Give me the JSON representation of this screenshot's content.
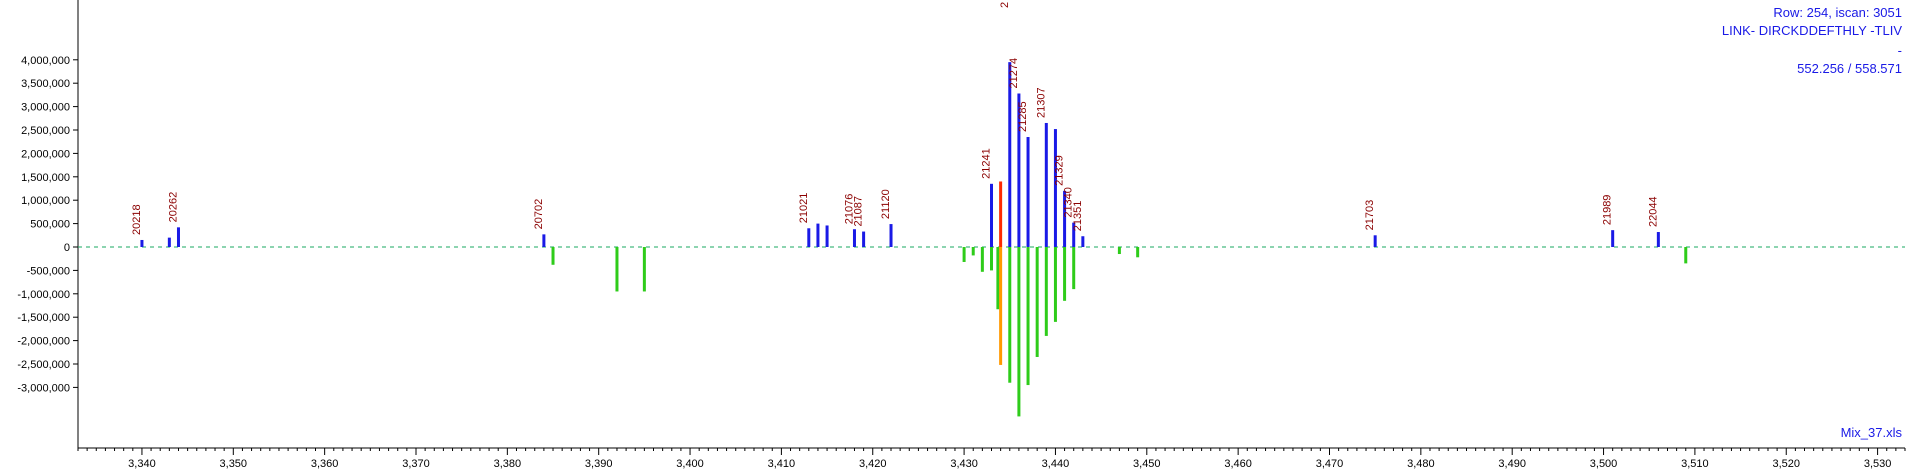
{
  "info": {
    "row_line": "Row: 254, iscan: 3051",
    "peptide_line": "LINK- DIRCKDDEFTHLY -TLIV",
    "dash_line": "-",
    "mz_line": "552.256 / 558.571",
    "file_name": "Mix_37.xls"
  },
  "colors": {
    "heavy": "#1a1ae6",
    "heavy_highlight": "#ff2a00",
    "light": "#2ecc1a",
    "light_highlight": "#ff9900",
    "baseline": "#1aa860",
    "label": "#8b0000",
    "axis": "#000000"
  },
  "chart_data": {
    "type": "bar",
    "xlim": [
      3333,
      3533
    ],
    "ylim": [
      -3700000,
      4150000
    ],
    "x_ticks": [
      3340,
      3350,
      3360,
      3370,
      3380,
      3390,
      3400,
      3410,
      3420,
      3430,
      3440,
      3450,
      3460,
      3470,
      3480,
      3490,
      3500,
      3510,
      3520,
      3530
    ],
    "x_tick_labels": [
      "3,340",
      "3,350",
      "3,360",
      "3,370",
      "3,380",
      "3,390",
      "3,400",
      "3,410",
      "3,420",
      "3,430",
      "3,440",
      "3,450",
      "3,460",
      "3,470",
      "3,480",
      "3,490",
      "3,500",
      "3,510",
      "3,520",
      "3,530"
    ],
    "y_ticks": [
      4000000,
      3500000,
      3000000,
      2500000,
      2000000,
      1500000,
      1000000,
      500000,
      0,
      -500000,
      -1000000,
      -1500000,
      -2000000,
      -2500000,
      -3000000
    ],
    "y_tick_labels": [
      "4,000,000",
      "3,500,000",
      "3,000,000",
      "2,500,000",
      "2,000,000",
      "1,500,000",
      "1,000,000",
      "500,000",
      "0",
      "-500,000",
      "-1,000,000",
      "-1,500,000",
      "-2,000,000",
      "-2,500,000",
      "-3,000,000"
    ],
    "series": [
      {
        "name": "",
        "values": [
          {
            "x": 3340,
            "y": 150000,
            "label": "20218"
          },
          {
            "x": 3343,
            "y": 200000
          },
          {
            "x": 3344,
            "y": 420000,
            "label": "20262"
          },
          {
            "x": 3384,
            "y": 270000,
            "label": "20702"
          },
          {
            "x": 3413,
            "y": 400000,
            "label": "21021"
          },
          {
            "x": 3414,
            "y": 500000
          },
          {
            "x": 3415,
            "y": 460000
          },
          {
            "x": 3418,
            "y": 380000,
            "label": "21076"
          },
          {
            "x": 3419,
            "y": 330000,
            "label": "21087"
          },
          {
            "x": 3422,
            "y": 490000,
            "label": "21120"
          },
          {
            "x": 3433,
            "y": 1350000,
            "label": "21241"
          },
          {
            "x": 3434,
            "y": 1400000,
            "highlight": true
          },
          {
            "x": 3435,
            "y": 3950000
          },
          {
            "x": 3436,
            "y": 3280000,
            "label": "21274"
          },
          {
            "x": 3437,
            "y": 2350000,
            "label": "21285"
          },
          {
            "x": 3439,
            "y": 2650000,
            "label": "21307"
          },
          {
            "x": 3440,
            "y": 2520000
          },
          {
            "x": 3441,
            "y": 1200000,
            "label": "21329"
          },
          {
            "x": 3442,
            "y": 520000,
            "label": "21340"
          },
          {
            "x": 3443,
            "y": 230000,
            "label": "21351"
          },
          {
            "x": 3475,
            "y": 250000,
            "label": "21703"
          },
          {
            "x": 3501,
            "y": 360000,
            "label": "21989"
          },
          {
            "x": 3506,
            "y": 320000,
            "label": "22044"
          }
        ]
      },
      {
        "name": "",
        "values": [
          {
            "x": 3385,
            "y": -380000
          },
          {
            "x": 3392,
            "y": -950000
          },
          {
            "x": 3395,
            "y": -950000
          },
          {
            "x": 3430,
            "y": -320000
          },
          {
            "x": 3431,
            "y": -180000
          },
          {
            "x": 3432,
            "y": -530000
          },
          {
            "x": 3433,
            "y": -500000
          },
          {
            "x": 3433.7,
            "y": -1330000
          },
          {
            "x": 3434,
            "y": -2520000,
            "highlight": true
          },
          {
            "x": 3435,
            "y": -2900000
          },
          {
            "x": 3436,
            "y": -3620000
          },
          {
            "x": 3437,
            "y": -2950000
          },
          {
            "x": 3438,
            "y": -2350000
          },
          {
            "x": 3439,
            "y": -1900000
          },
          {
            "x": 3440,
            "y": -1600000
          },
          {
            "x": 3441,
            "y": -1150000
          },
          {
            "x": 3442,
            "y": -900000
          },
          {
            "x": 3447,
            "y": -150000
          },
          {
            "x": 3449,
            "y": -220000
          },
          {
            "x": 3509,
            "y": -350000
          }
        ]
      }
    ],
    "top_label": {
      "x": 3435,
      "label": "2"
    },
    "grid": false,
    "xlabel": "",
    "ylabel": ""
  }
}
